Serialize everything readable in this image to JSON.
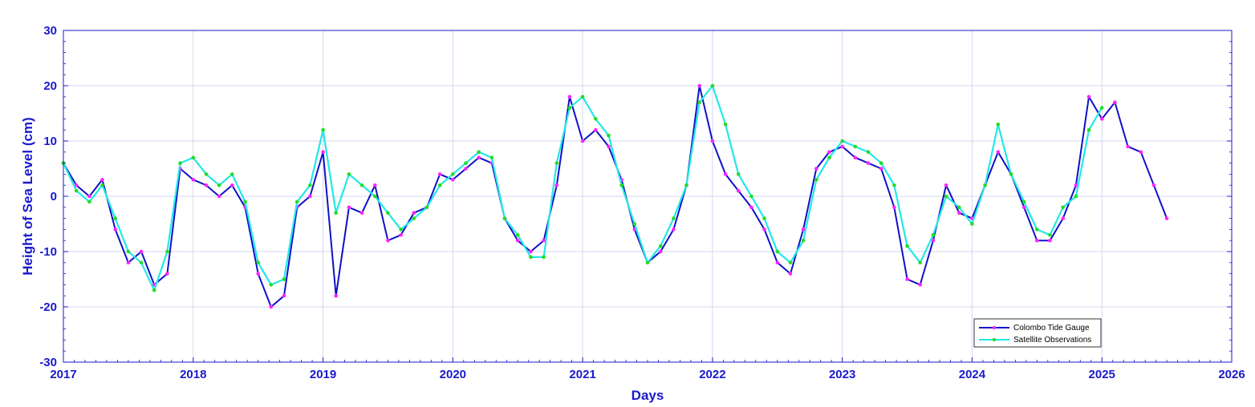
{
  "chart_data": {
    "type": "line",
    "title": "",
    "xlabel": "Days",
    "ylabel": "Height of Sea Level (cm)",
    "xlim": [
      2017,
      2026
    ],
    "ylim": [
      -30,
      30
    ],
    "x_ticks": [
      "2017",
      "2018",
      "2019",
      "2020",
      "2021",
      "2022",
      "2023",
      "2024",
      "2025",
      "2026"
    ],
    "y_ticks": [
      "30",
      "20",
      "10",
      "0",
      "-10",
      "-20",
      "-30"
    ],
    "grid": true,
    "legend_position": "bottom-right",
    "series": [
      {
        "name": "Colombo Tide Gauge",
        "color": "#1010c8",
        "marker_color": "#ff22ff",
        "x": [
          2017.0,
          2017.1,
          2017.2,
          2017.3,
          2017.4,
          2017.5,
          2017.6,
          2017.7,
          2017.8,
          2017.9,
          2018.0,
          2018.1,
          2018.2,
          2018.3,
          2018.4,
          2018.5,
          2018.6,
          2018.7,
          2018.8,
          2018.9,
          2019.0,
          2019.1,
          2019.2,
          2019.3,
          2019.4,
          2019.5,
          2019.6,
          2019.7,
          2019.8,
          2019.9,
          2020.0,
          2020.1,
          2020.2,
          2020.3,
          2020.4,
          2020.5,
          2020.6,
          2020.7,
          2020.8,
          2020.9,
          2021.0,
          2021.1,
          2021.2,
          2021.3,
          2021.4,
          2021.5,
          2021.6,
          2021.7,
          2021.8,
          2021.9,
          2022.0,
          2022.1,
          2022.2,
          2022.3,
          2022.4,
          2022.5,
          2022.6,
          2022.7,
          2022.8,
          2022.9,
          2023.0,
          2023.1,
          2023.2,
          2023.3,
          2023.4,
          2023.5,
          2023.6,
          2023.7,
          2023.8,
          2023.9,
          2024.0,
          2024.1,
          2024.2,
          2024.3,
          2024.4,
          2024.5,
          2024.6,
          2024.7,
          2024.8,
          2024.9,
          2025.0,
          2025.1,
          2025.2,
          2025.3,
          2025.4,
          2025.5
        ],
        "y": [
          6,
          2,
          0,
          3,
          -6,
          -12,
          -10,
          -16,
          -14,
          5,
          3,
          2,
          0,
          2,
          -2,
          -14,
          -20,
          -18,
          -2,
          0,
          8,
          -18,
          -2,
          -3,
          2,
          -8,
          -7,
          -3,
          -2,
          4,
          3,
          5,
          7,
          6,
          -4,
          -8,
          -10,
          -8,
          2,
          18,
          10,
          12,
          9,
          3,
          -6,
          -12,
          -10,
          -6,
          2,
          20,
          10,
          4,
          1,
          -2,
          -6,
          -12,
          -14,
          -6,
          5,
          8,
          9,
          7,
          6,
          5,
          -2,
          -15,
          -16,
          -8,
          2,
          -3,
          -4,
          2,
          8,
          4,
          -2,
          -8,
          -8,
          -4,
          2,
          18,
          14,
          17,
          9,
          8,
          2,
          -4
        ]
      },
      {
        "name": "Satellite Observations",
        "color": "#22e8e8",
        "marker_color": "#22dd22",
        "x": [
          2017.0,
          2017.1,
          2017.2,
          2017.3,
          2017.4,
          2017.5,
          2017.6,
          2017.7,
          2017.8,
          2017.9,
          2018.0,
          2018.1,
          2018.2,
          2018.3,
          2018.4,
          2018.5,
          2018.6,
          2018.7,
          2018.8,
          2018.9,
          2019.0,
          2019.1,
          2019.2,
          2019.3,
          2019.4,
          2019.5,
          2019.6,
          2019.7,
          2019.8,
          2019.9,
          2020.0,
          2020.1,
          2020.2,
          2020.3,
          2020.4,
          2020.5,
          2020.6,
          2020.7,
          2020.8,
          2020.9,
          2021.0,
          2021.1,
          2021.2,
          2021.3,
          2021.4,
          2021.5,
          2021.6,
          2021.7,
          2021.8,
          2021.9,
          2022.0,
          2022.1,
          2022.2,
          2022.3,
          2022.4,
          2022.5,
          2022.6,
          2022.7,
          2022.8,
          2022.9,
          2023.0,
          2023.1,
          2023.2,
          2023.3,
          2023.4,
          2023.5,
          2023.6,
          2023.7,
          2023.8,
          2023.9,
          2024.0,
          2024.1,
          2024.2,
          2024.3,
          2024.4,
          2024.5,
          2024.6,
          2024.7,
          2024.8,
          2024.9,
          2025.0
        ],
        "y": [
          6,
          1,
          -1,
          2,
          -4,
          -10,
          -12,
          -17,
          -10,
          6,
          7,
          4,
          2,
          4,
          -1,
          -12,
          -16,
          -15,
          -1,
          2,
          12,
          -3,
          4,
          2,
          0,
          -3,
          -6,
          -4,
          -2,
          2,
          4,
          6,
          8,
          7,
          -4,
          -7,
          -11,
          -11,
          6,
          16,
          18,
          14,
          11,
          2,
          -5,
          -12,
          -9,
          -4,
          2,
          17,
          20,
          13,
          4,
          0,
          -4,
          -10,
          -12,
          -8,
          3,
          7,
          10,
          9,
          8,
          6,
          2,
          -9,
          -12,
          -7,
          0,
          -2,
          -5,
          2,
          13,
          4,
          -1,
          -6,
          -7,
          -2,
          0,
          12,
          16
        ]
      }
    ]
  }
}
